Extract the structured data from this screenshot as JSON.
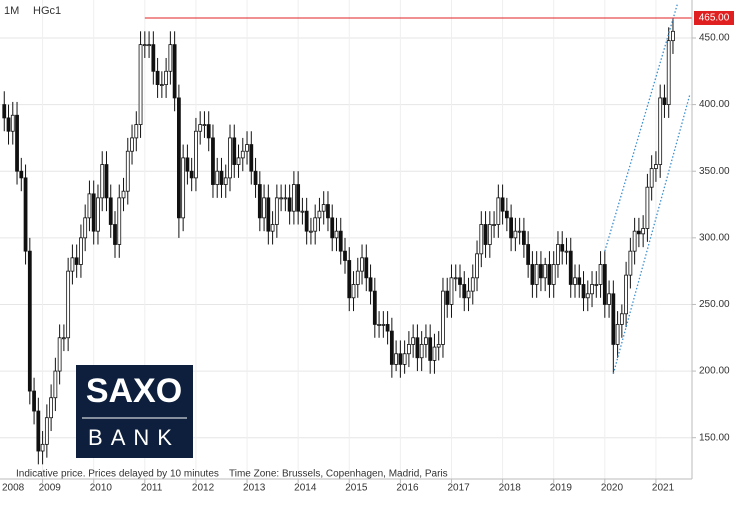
{
  "header": {
    "interval": "1M",
    "symbol": "HGc1"
  },
  "footer": {
    "notice": "Indicative price. Prices delayed by 10 minutes",
    "timezone": "Time Zone: Brussels, Copenhagen, Madrid, Paris"
  },
  "logo": {
    "top": "SAXO",
    "bottom": "BANK"
  },
  "chart_data": {
    "type": "candlestick",
    "x": [
      "2008-04",
      "2008-05",
      "2008-06",
      "2008-07",
      "2008-08",
      "2008-09",
      "2008-10",
      "2008-11",
      "2008-12",
      "2009-01",
      "2009-02",
      "2009-03",
      "2009-04",
      "2009-05",
      "2009-06",
      "2009-07",
      "2009-08",
      "2009-09",
      "2009-10",
      "2009-11",
      "2009-12",
      "2010-01",
      "2010-02",
      "2010-03",
      "2010-04",
      "2010-05",
      "2010-06",
      "2010-07",
      "2010-08",
      "2010-09",
      "2010-10",
      "2010-11",
      "2010-12",
      "2011-01",
      "2011-02",
      "2011-03",
      "2011-04",
      "2011-05",
      "2011-06",
      "2011-07",
      "2011-08",
      "2011-09",
      "2011-10",
      "2011-11",
      "2011-12",
      "2012-01",
      "2012-02",
      "2012-03",
      "2012-04",
      "2012-05",
      "2012-06",
      "2012-07",
      "2012-08",
      "2012-09",
      "2012-10",
      "2012-11",
      "2012-12",
      "2013-01",
      "2013-02",
      "2013-03",
      "2013-04",
      "2013-05",
      "2013-06",
      "2013-07",
      "2013-08",
      "2013-09",
      "2013-10",
      "2013-11",
      "2013-12",
      "2014-01",
      "2014-02",
      "2014-03",
      "2014-04",
      "2014-05",
      "2014-06",
      "2014-07",
      "2014-08",
      "2014-09",
      "2014-10",
      "2014-11",
      "2014-12",
      "2015-01",
      "2015-02",
      "2015-03",
      "2015-04",
      "2015-05",
      "2015-06",
      "2015-07",
      "2015-08",
      "2015-09",
      "2015-10",
      "2015-11",
      "2015-12",
      "2016-01",
      "2016-02",
      "2016-03",
      "2016-04",
      "2016-05",
      "2016-06",
      "2016-07",
      "2016-08",
      "2016-09",
      "2016-10",
      "2016-11",
      "2016-12",
      "2017-01",
      "2017-02",
      "2017-03",
      "2017-04",
      "2017-05",
      "2017-06",
      "2017-07",
      "2017-08",
      "2017-09",
      "2017-10",
      "2017-11",
      "2017-12",
      "2018-01",
      "2018-02",
      "2018-03",
      "2018-04",
      "2018-05",
      "2018-06",
      "2018-07",
      "2018-08",
      "2018-09",
      "2018-10",
      "2018-11",
      "2018-12",
      "2019-01",
      "2019-02",
      "2019-03",
      "2019-04",
      "2019-05",
      "2019-06",
      "2019-07",
      "2019-08",
      "2019-09",
      "2019-10",
      "2019-11",
      "2019-12",
      "2020-01",
      "2020-02",
      "2020-03",
      "2020-04",
      "2020-05",
      "2020-06",
      "2020-07",
      "2020-08",
      "2020-09",
      "2020-10",
      "2020-11",
      "2020-12",
      "2021-01",
      "2021-02",
      "2021-03",
      "2021-04",
      "2021-05"
    ],
    "open": [
      400,
      390,
      380,
      392,
      350,
      345,
      290,
      185,
      170,
      140,
      145,
      165,
      180,
      200,
      225,
      225,
      275,
      285,
      280,
      300,
      315,
      333,
      305,
      330,
      355,
      330,
      310,
      295,
      330,
      335,
      365,
      375,
      385,
      445,
      445,
      445,
      425,
      415,
      415,
      425,
      445,
      405,
      315,
      360,
      350,
      345,
      380,
      385,
      385,
      375,
      340,
      350,
      340,
      345,
      375,
      355,
      360,
      365,
      370,
      350,
      340,
      315,
      330,
      305,
      310,
      330,
      330,
      330,
      320,
      340,
      320,
      320,
      305,
      305,
      315,
      320,
      325,
      315,
      300,
      305,
      290,
      283,
      255,
      265,
      275,
      285,
      270,
      260,
      235,
      235,
      235,
      230,
      205,
      213,
      205,
      213,
      220,
      225,
      210,
      220,
      225,
      208,
      218,
      220,
      260,
      250,
      270,
      270,
      265,
      255,
      260,
      270,
      288,
      310,
      295,
      310,
      310,
      330,
      320,
      315,
      300,
      305,
      305,
      295,
      280,
      265,
      280,
      270,
      280,
      265,
      280,
      295,
      290,
      290,
      265,
      270,
      265,
      255,
      258,
      265,
      265,
      280,
      250,
      258,
      220,
      235,
      243,
      272,
      290,
      305,
      303,
      307,
      338,
      352,
      355,
      405,
      400,
      448
    ],
    "high": [
      410,
      400,
      402,
      402,
      360,
      355,
      300,
      195,
      180,
      155,
      175,
      190,
      210,
      235,
      235,
      285,
      295,
      295,
      310,
      325,
      343,
      343,
      340,
      365,
      365,
      340,
      320,
      340,
      345,
      375,
      385,
      395,
      455,
      455,
      455,
      455,
      435,
      425,
      435,
      455,
      455,
      415,
      370,
      370,
      360,
      390,
      395,
      395,
      395,
      385,
      360,
      360,
      355,
      385,
      385,
      370,
      375,
      380,
      380,
      360,
      350,
      340,
      340,
      320,
      340,
      340,
      340,
      340,
      350,
      350,
      330,
      330,
      315,
      325,
      330,
      335,
      335,
      325,
      315,
      315,
      300,
      293,
      275,
      285,
      295,
      295,
      280,
      270,
      245,
      245,
      245,
      240,
      223,
      223,
      223,
      230,
      235,
      235,
      230,
      235,
      235,
      228,
      230,
      270,
      270,
      280,
      280,
      280,
      275,
      270,
      280,
      298,
      320,
      320,
      320,
      320,
      340,
      340,
      330,
      325,
      315,
      315,
      315,
      305,
      290,
      290,
      290,
      285,
      290,
      290,
      305,
      305,
      300,
      300,
      280,
      280,
      275,
      268,
      275,
      275,
      290,
      290,
      268,
      268,
      245,
      250,
      282,
      300,
      315,
      315,
      317,
      348,
      362,
      365,
      415,
      415,
      458,
      465
    ],
    "low": [
      380,
      370,
      370,
      340,
      335,
      280,
      175,
      160,
      130,
      130,
      135,
      155,
      170,
      190,
      215,
      215,
      265,
      270,
      270,
      290,
      305,
      295,
      295,
      320,
      320,
      300,
      285,
      285,
      320,
      325,
      355,
      365,
      375,
      435,
      435,
      415,
      405,
      405,
      405,
      415,
      395,
      300,
      305,
      340,
      335,
      335,
      370,
      375,
      365,
      330,
      330,
      330,
      330,
      335,
      345,
      345,
      350,
      355,
      340,
      330,
      305,
      305,
      295,
      295,
      300,
      320,
      320,
      310,
      310,
      310,
      310,
      295,
      295,
      295,
      305,
      310,
      305,
      290,
      290,
      280,
      273,
      245,
      245,
      255,
      265,
      260,
      250,
      225,
      225,
      225,
      220,
      195,
      200,
      195,
      198,
      203,
      210,
      200,
      200,
      210,
      198,
      198,
      208,
      210,
      240,
      240,
      260,
      255,
      245,
      245,
      250,
      260,
      278,
      285,
      285,
      300,
      300,
      310,
      305,
      290,
      290,
      295,
      285,
      270,
      255,
      255,
      260,
      260,
      255,
      255,
      270,
      280,
      280,
      255,
      255,
      255,
      245,
      245,
      248,
      255,
      255,
      240,
      240,
      198,
      210,
      225,
      233,
      262,
      280,
      293,
      293,
      297,
      328,
      342,
      345,
      390,
      390,
      438
    ],
    "close": [
      390,
      380,
      392,
      350,
      345,
      290,
      185,
      170,
      140,
      145,
      165,
      180,
      200,
      225,
      225,
      275,
      285,
      280,
      300,
      315,
      333,
      305,
      330,
      355,
      330,
      310,
      295,
      330,
      335,
      365,
      375,
      385,
      445,
      445,
      445,
      425,
      415,
      415,
      425,
      445,
      405,
      315,
      360,
      350,
      345,
      380,
      385,
      385,
      375,
      340,
      350,
      340,
      345,
      375,
      355,
      360,
      365,
      370,
      350,
      340,
      315,
      330,
      305,
      310,
      330,
      330,
      330,
      320,
      340,
      320,
      320,
      305,
      305,
      315,
      320,
      325,
      315,
      300,
      305,
      290,
      283,
      255,
      265,
      275,
      285,
      270,
      260,
      235,
      235,
      235,
      230,
      205,
      213,
      205,
      213,
      220,
      225,
      210,
      220,
      225,
      208,
      218,
      220,
      260,
      250,
      270,
      270,
      265,
      255,
      260,
      270,
      288,
      310,
      295,
      310,
      310,
      330,
      320,
      315,
      300,
      305,
      305,
      295,
      280,
      265,
      280,
      270,
      280,
      265,
      280,
      295,
      290,
      290,
      265,
      270,
      265,
      255,
      258,
      265,
      265,
      280,
      250,
      258,
      220,
      235,
      243,
      272,
      290,
      305,
      303,
      307,
      338,
      352,
      355,
      405,
      400,
      448,
      455
    ],
    "up_color": "#ffffff",
    "down_color": "#111111",
    "outline_color": "#111111",
    "xlim": [
      "2008-03",
      "2021-09"
    ],
    "xticks": [
      {
        "value": "2008-01",
        "label": "2008"
      },
      {
        "value": "2009-01",
        "label": "2009"
      },
      {
        "value": "2010-01",
        "label": "2010"
      },
      {
        "value": "2011-01",
        "label": "2011"
      },
      {
        "value": "2012-01",
        "label": "2012"
      },
      {
        "value": "2013-01",
        "label": "2013"
      },
      {
        "value": "2014-01",
        "label": "2014"
      },
      {
        "value": "2015-01",
        "label": "2015"
      },
      {
        "value": "2016-01",
        "label": "2016"
      },
      {
        "value": "2017-01",
        "label": "2017"
      },
      {
        "value": "2018-01",
        "label": "2018"
      },
      {
        "value": "2019-01",
        "label": "2019"
      },
      {
        "value": "2020-01",
        "label": "2020"
      },
      {
        "value": "2021-01",
        "label": "2021"
      }
    ],
    "ylim": [
      119,
      478.5
    ],
    "yticks": [
      {
        "value": 150,
        "label": "150.00"
      },
      {
        "value": 200,
        "label": "200.00"
      },
      {
        "value": 250,
        "label": "250.00"
      },
      {
        "value": 300,
        "label": "300.00"
      },
      {
        "value": 350,
        "label": "350.00"
      },
      {
        "value": 400,
        "label": "400.00"
      },
      {
        "value": 450,
        "label": "450.00"
      }
    ],
    "grid": true,
    "reference_line": {
      "value": 465,
      "label": "465.00",
      "from": "2011-01",
      "color": "#e02020"
    },
    "trendlines": [
      {
        "x": [
          "2020-01",
          "2021-06"
        ],
        "values": [
          290,
          475
        ],
        "color": "#3a8fd0"
      },
      {
        "x": [
          "2020-03",
          "2021-09"
        ],
        "values": [
          198,
          408
        ],
        "color": "#3a8fd0"
      }
    ]
  }
}
